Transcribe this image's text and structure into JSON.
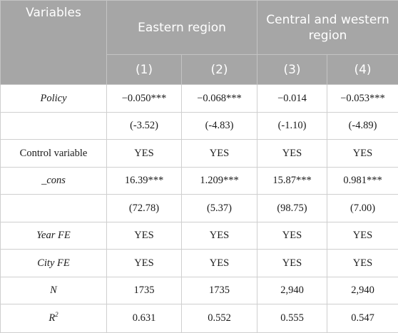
{
  "header": {
    "variables_label": "Variables",
    "group_eastern": "Eastern region",
    "group_central_western": "Central and western region",
    "columns": [
      "(1)",
      "(2)",
      "(3)",
      "(4)"
    ]
  },
  "rows": {
    "policy": {
      "label": "Policy",
      "values": [
        "−0.050***",
        "−0.068***",
        "−0.014",
        "−0.053***"
      ]
    },
    "policy_t": {
      "label": "",
      "values": [
        "(-3.52)",
        "(-4.83)",
        "(-1.10)",
        "(-4.89)"
      ]
    },
    "control": {
      "label": "Control variable",
      "values": [
        "YES",
        "YES",
        "YES",
        "YES"
      ]
    },
    "cons": {
      "label": "_cons",
      "values": [
        "16.39***",
        "1.209***",
        "15.87***",
        "0.981***"
      ]
    },
    "cons_t": {
      "label": "",
      "values": [
        "(72.78)",
        "(5.37)",
        "(98.75)",
        "(7.00)"
      ]
    },
    "year_fe": {
      "label": "Year FE",
      "values": [
        "YES",
        "YES",
        "YES",
        "YES"
      ]
    },
    "city_fe": {
      "label": "City FE",
      "values": [
        "YES",
        "YES",
        "YES",
        "YES"
      ]
    },
    "n": {
      "label": "N",
      "values": [
        "1735",
        "1735",
        "2,940",
        "2,940"
      ]
    },
    "r2": {
      "label": "R",
      "label_sup": "2",
      "values": [
        "0.631",
        "0.552",
        "0.555",
        "0.547"
      ]
    }
  },
  "colors": {
    "header_bg": "#a6a6a6",
    "header_text": "#ffffff",
    "grid": "#cfcfcf"
  }
}
